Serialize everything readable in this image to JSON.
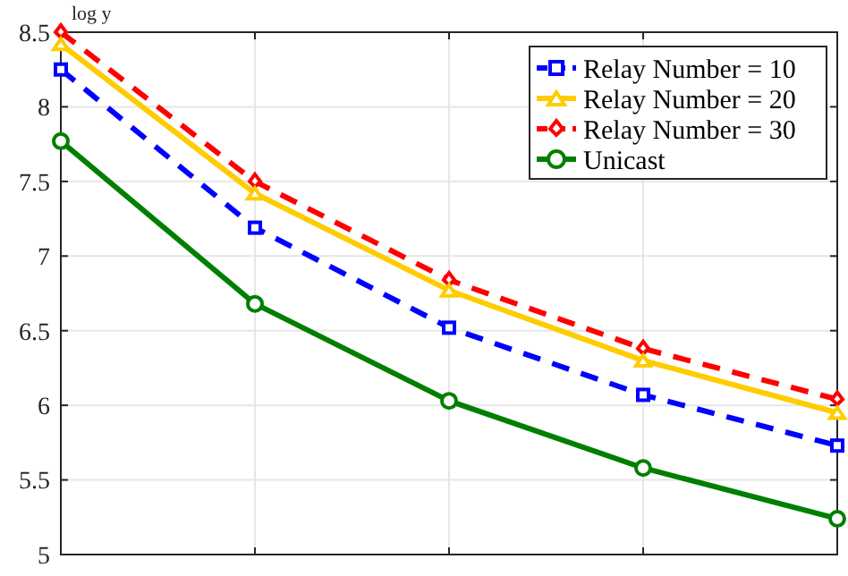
{
  "chart_data": {
    "type": "line",
    "ylabel": "log y",
    "categories": [
      null,
      null,
      null,
      null,
      null
    ],
    "ylim": [
      5,
      8.5
    ],
    "yticks": [
      5,
      5.5,
      6,
      6.5,
      7,
      7.5,
      8,
      8.5
    ],
    "grid": true,
    "legend": "top right",
    "series": [
      {
        "name": "Relay Number = 10",
        "color": "#0000ff",
        "marker": "square",
        "line_style": "dashed",
        "values": [
          8.25,
          7.19,
          6.52,
          6.07,
          5.73
        ]
      },
      {
        "name": "Relay Number = 20",
        "color": "#ffcc00",
        "marker": "triangle",
        "line_style": "solid",
        "values": [
          8.42,
          7.42,
          6.77,
          6.3,
          5.95
        ]
      },
      {
        "name": "Relay Number = 30",
        "color": "#ff0000",
        "marker": "diamond",
        "line_style": "dashed",
        "values": [
          8.5,
          7.5,
          6.84,
          6.38,
          6.04
        ]
      },
      {
        "name": "Unicast",
        "color": "#007f00",
        "marker": "circle",
        "line_style": "solid",
        "values": [
          7.77,
          6.68,
          6.03,
          5.58,
          5.24
        ]
      }
    ]
  }
}
